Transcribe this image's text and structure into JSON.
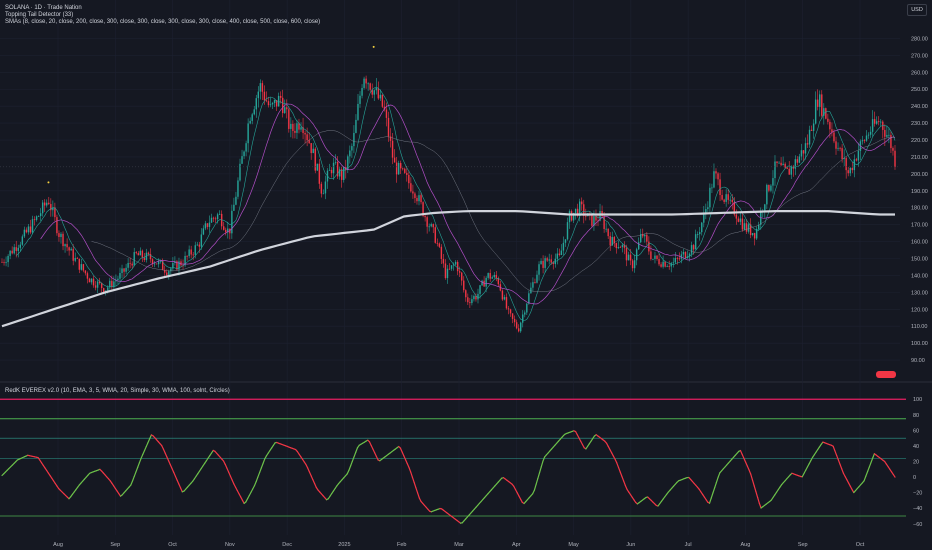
{
  "legend": {
    "line1": "SOLANA · 1D · Trade Nation",
    "line2": "Topping Tail Detector (33)",
    "line3": "SMAs (8, close, 20, close, 200, close, 300, close, 300, close, 300, close, 300, close, 400, close, 500, close, 600, close)",
    "line4": "RedK EVEREX v2.0 (10, EMA, 3, 5, WMA, 20, Simple, 30, WMA, 100, solnt, Circles)"
  },
  "currency": "USD",
  "price_tag_label": "",
  "colors": {
    "background": "#151822",
    "grid": "#1d2130",
    "bull": "#26a69a",
    "bear": "#f23645",
    "sma_fast": "#26a69a",
    "sma_mid": "#b24ec7",
    "sma_200": "#d1d4dc",
    "osc_up": "#6cc04a",
    "osc_down": "#f23645",
    "level_red": "#e91e63",
    "level_green": "#4caf50",
    "level_teal": "#2f9e8f",
    "axis_text": "#b2b5be",
    "tick_mark": "#f4d03f"
  },
  "chart_data": [
    {
      "type": "candlestick",
      "title": "SOLANA · 1D · Trade Nation",
      "ylabel": "USD",
      "y_ticks": [
        90,
        100,
        110,
        120,
        130,
        140,
        150,
        160,
        170,
        180,
        190,
        200,
        210,
        220,
        230,
        240,
        250,
        260,
        270,
        280
      ],
      "y_tick_labels": [
        "90.00",
        "100.00",
        "110.00",
        "120.00",
        "130.00",
        "140.00",
        "150.00",
        "160.00",
        "170.00",
        "180.00",
        "190.00",
        "200.00",
        "210.00",
        "220.00",
        "230.00",
        "240.00",
        "250.00",
        "260.00",
        "270.00",
        "280.00"
      ],
      "ylim": [
        80,
        285
      ],
      "x_labels": [
        "Aug",
        "Sep",
        "Oct",
        "Nov",
        "Dec",
        "2025",
        "Feb",
        "Mar",
        "Apr",
        "May",
        "Jun",
        "Jul",
        "Aug",
        "Sep",
        "Oct"
      ],
      "close_path": [
        {
          "t": 0,
          "c": 148
        },
        {
          "t": 4,
          "c": 162
        },
        {
          "t": 7,
          "c": 175
        },
        {
          "t": 9,
          "c": 185
        },
        {
          "t": 11,
          "c": 165
        },
        {
          "t": 14,
          "c": 150
        },
        {
          "t": 17,
          "c": 138
        },
        {
          "t": 20,
          "c": 132
        },
        {
          "t": 23,
          "c": 140
        },
        {
          "t": 26,
          "c": 152
        },
        {
          "t": 29,
          "c": 150
        },
        {
          "t": 32,
          "c": 143
        },
        {
          "t": 35,
          "c": 148
        },
        {
          "t": 38,
          "c": 158
        },
        {
          "t": 40,
          "c": 172
        },
        {
          "t": 42,
          "c": 176
        },
        {
          "t": 44,
          "c": 165
        },
        {
          "t": 46,
          "c": 200
        },
        {
          "t": 48,
          "c": 235
        },
        {
          "t": 50,
          "c": 252
        },
        {
          "t": 52,
          "c": 238
        },
        {
          "t": 54,
          "c": 245
        },
        {
          "t": 56,
          "c": 225
        },
        {
          "t": 58,
          "c": 232
        },
        {
          "t": 60,
          "c": 215
        },
        {
          "t": 62,
          "c": 190
        },
        {
          "t": 64,
          "c": 205
        },
        {
          "t": 66,
          "c": 198
        },
        {
          "t": 68,
          "c": 218
        },
        {
          "t": 70,
          "c": 260
        },
        {
          "t": 72,
          "c": 250
        },
        {
          "t": 74,
          "c": 238
        },
        {
          "t": 76,
          "c": 205
        },
        {
          "t": 78,
          "c": 198
        },
        {
          "t": 80,
          "c": 190
        },
        {
          "t": 82,
          "c": 175
        },
        {
          "t": 84,
          "c": 162
        },
        {
          "t": 86,
          "c": 140
        },
        {
          "t": 88,
          "c": 148
        },
        {
          "t": 90,
          "c": 125
        },
        {
          "t": 92,
          "c": 128
        },
        {
          "t": 94,
          "c": 140
        },
        {
          "t": 96,
          "c": 138
        },
        {
          "t": 98,
          "c": 118
        },
        {
          "t": 100,
          "c": 108
        },
        {
          "t": 102,
          "c": 128
        },
        {
          "t": 104,
          "c": 145
        },
        {
          "t": 106,
          "c": 150
        },
        {
          "t": 108,
          "c": 150
        },
        {
          "t": 110,
          "c": 175
        },
        {
          "t": 112,
          "c": 180
        },
        {
          "t": 114,
          "c": 172
        },
        {
          "t": 116,
          "c": 175
        },
        {
          "t": 118,
          "c": 160
        },
        {
          "t": 120,
          "c": 158
        },
        {
          "t": 122,
          "c": 145
        },
        {
          "t": 124,
          "c": 165
        },
        {
          "t": 126,
          "c": 150
        },
        {
          "t": 128,
          "c": 148
        },
        {
          "t": 130,
          "c": 147
        },
        {
          "t": 132,
          "c": 152
        },
        {
          "t": 134,
          "c": 158
        },
        {
          "t": 136,
          "c": 175
        },
        {
          "t": 138,
          "c": 200
        },
        {
          "t": 140,
          "c": 185
        },
        {
          "t": 142,
          "c": 178
        },
        {
          "t": 144,
          "c": 168
        },
        {
          "t": 146,
          "c": 165
        },
        {
          "t": 148,
          "c": 188
        },
        {
          "t": 150,
          "c": 205
        },
        {
          "t": 152,
          "c": 200
        },
        {
          "t": 154,
          "c": 208
        },
        {
          "t": 156,
          "c": 218
        },
        {
          "t": 158,
          "c": 245
        },
        {
          "t": 160,
          "c": 232
        },
        {
          "t": 162,
          "c": 215
        },
        {
          "t": 164,
          "c": 200
        },
        {
          "t": 166,
          "c": 215
        },
        {
          "t": 168,
          "c": 225
        },
        {
          "t": 170,
          "c": 232
        },
        {
          "t": 172,
          "c": 220
        },
        {
          "t": 173,
          "c": 208
        }
      ],
      "sma_200_path": [
        {
          "t": 0,
          "c": 110
        },
        {
          "t": 10,
          "c": 120
        },
        {
          "t": 20,
          "c": 130
        },
        {
          "t": 30,
          "c": 138
        },
        {
          "t": 40,
          "c": 145
        },
        {
          "t": 50,
          "c": 155
        },
        {
          "t": 60,
          "c": 163
        },
        {
          "t": 66,
          "c": 165
        },
        {
          "t": 72,
          "c": 167
        },
        {
          "t": 78,
          "c": 175
        },
        {
          "t": 84,
          "c": 177
        },
        {
          "t": 90,
          "c": 178
        },
        {
          "t": 100,
          "c": 178
        },
        {
          "t": 110,
          "c": 176
        },
        {
          "t": 120,
          "c": 176
        },
        {
          "t": 130,
          "c": 176
        },
        {
          "t": 140,
          "c": 177
        },
        {
          "t": 150,
          "c": 178
        },
        {
          "t": 160,
          "c": 178
        },
        {
          "t": 170,
          "c": 176
        },
        {
          "t": 173,
          "c": 176
        }
      ],
      "top_markers": [
        {
          "t": 9,
          "c": 195
        },
        {
          "t": 72,
          "c": 275
        }
      ]
    },
    {
      "type": "line",
      "title": "RedK EVEREX v2.0 (10, EMA, 3, 5, WMA, 20, Simple, 30, WMA, 100, solnt, Circles)",
      "y_ticks": [
        -60,
        -40,
        -20,
        0,
        20,
        40,
        60,
        80,
        100
      ],
      "y_tick_labels": [
        "−60",
        "−40",
        "−20",
        "0",
        "20",
        "40",
        "60",
        "80",
        "100"
      ],
      "ylim": [
        -68,
        108
      ],
      "levels": [
        -50,
        24,
        50,
        75,
        100
      ],
      "oscillator": [
        {
          "t": 0,
          "v": 2
        },
        {
          "t": 3,
          "v": 22
        },
        {
          "t": 5,
          "v": 28
        },
        {
          "t": 7,
          "v": 25
        },
        {
          "t": 9,
          "v": 5
        },
        {
          "t": 11,
          "v": -15
        },
        {
          "t": 13,
          "v": -28
        },
        {
          "t": 15,
          "v": -10
        },
        {
          "t": 17,
          "v": 5
        },
        {
          "t": 19,
          "v": 10
        },
        {
          "t": 21,
          "v": -5
        },
        {
          "t": 23,
          "v": -25
        },
        {
          "t": 25,
          "v": -10
        },
        {
          "t": 27,
          "v": 25
        },
        {
          "t": 29,
          "v": 55
        },
        {
          "t": 31,
          "v": 40
        },
        {
          "t": 33,
          "v": 10
        },
        {
          "t": 35,
          "v": -20
        },
        {
          "t": 37,
          "v": -5
        },
        {
          "t": 39,
          "v": 15
        },
        {
          "t": 41,
          "v": 35
        },
        {
          "t": 43,
          "v": 20
        },
        {
          "t": 45,
          "v": -10
        },
        {
          "t": 47,
          "v": -35
        },
        {
          "t": 49,
          "v": -10
        },
        {
          "t": 51,
          "v": 25
        },
        {
          "t": 53,
          "v": 45
        },
        {
          "t": 55,
          "v": 40
        },
        {
          "t": 57,
          "v": 35
        },
        {
          "t": 59,
          "v": 15
        },
        {
          "t": 61,
          "v": -15
        },
        {
          "t": 63,
          "v": -30
        },
        {
          "t": 65,
          "v": -10
        },
        {
          "t": 67,
          "v": 5
        },
        {
          "t": 69,
          "v": 40
        },
        {
          "t": 71,
          "v": 48
        },
        {
          "t": 73,
          "v": 20
        },
        {
          "t": 75,
          "v": 30
        },
        {
          "t": 77,
          "v": 40
        },
        {
          "t": 79,
          "v": 10
        },
        {
          "t": 81,
          "v": -30
        },
        {
          "t": 83,
          "v": -45
        },
        {
          "t": 85,
          "v": -40
        },
        {
          "t": 87,
          "v": -50
        },
        {
          "t": 89,
          "v": -60
        },
        {
          "t": 91,
          "v": -45
        },
        {
          "t": 93,
          "v": -30
        },
        {
          "t": 95,
          "v": -15
        },
        {
          "t": 97,
          "v": 0
        },
        {
          "t": 99,
          "v": -10
        },
        {
          "t": 101,
          "v": -35
        },
        {
          "t": 103,
          "v": -20
        },
        {
          "t": 105,
          "v": 25
        },
        {
          "t": 107,
          "v": 40
        },
        {
          "t": 109,
          "v": 55
        },
        {
          "t": 111,
          "v": 60
        },
        {
          "t": 113,
          "v": 35
        },
        {
          "t": 115,
          "v": 55
        },
        {
          "t": 117,
          "v": 45
        },
        {
          "t": 119,
          "v": 20
        },
        {
          "t": 121,
          "v": -15
        },
        {
          "t": 123,
          "v": -35
        },
        {
          "t": 125,
          "v": -25
        },
        {
          "t": 127,
          "v": -38
        },
        {
          "t": 129,
          "v": -20
        },
        {
          "t": 131,
          "v": -5
        },
        {
          "t": 133,
          "v": 0
        },
        {
          "t": 135,
          "v": -15
        },
        {
          "t": 137,
          "v": -35
        },
        {
          "t": 139,
          "v": 5
        },
        {
          "t": 141,
          "v": 20
        },
        {
          "t": 143,
          "v": 35
        },
        {
          "t": 145,
          "v": 5
        },
        {
          "t": 147,
          "v": -40
        },
        {
          "t": 149,
          "v": -30
        },
        {
          "t": 151,
          "v": -10
        },
        {
          "t": 153,
          "v": 5
        },
        {
          "t": 155,
          "v": 0
        },
        {
          "t": 157,
          "v": 25
        },
        {
          "t": 159,
          "v": 45
        },
        {
          "t": 161,
          "v": 40
        },
        {
          "t": 163,
          "v": 5
        },
        {
          "t": 165,
          "v": -20
        },
        {
          "t": 167,
          "v": -5
        },
        {
          "t": 169,
          "v": 30
        },
        {
          "t": 171,
          "v": 20
        },
        {
          "t": 173,
          "v": 0
        }
      ]
    }
  ]
}
